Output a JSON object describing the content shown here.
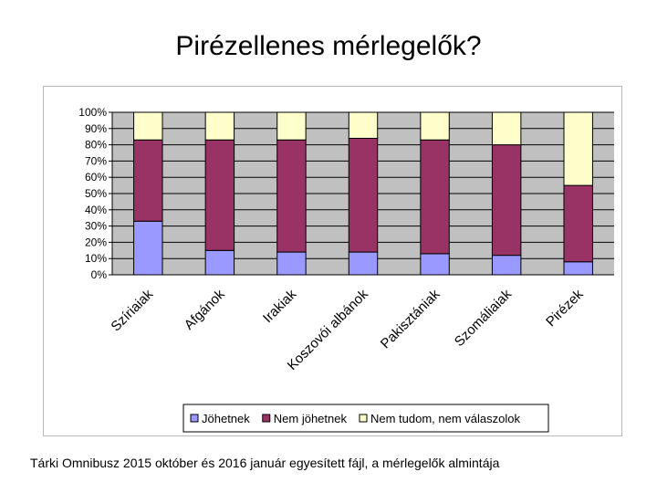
{
  "slide": {
    "title": "Pirézellenes mérlegelők?",
    "footnote": "Tárki Omnibusz 2015 október és 2016 január egyesített fájl, a mérlegelők almintája"
  },
  "chart_data": {
    "type": "bar",
    "stacked": true,
    "percent": true,
    "categories": [
      "Szíriaiak",
      "Afgánok",
      "Irakiak",
      "Koszovói albánok",
      "Pakisztániak",
      "Szomáliaiak",
      "Pirézek"
    ],
    "series": [
      {
        "name": "Jöhetnek",
        "color": "#9999ff",
        "values": [
          33,
          15,
          14,
          14,
          13,
          12,
          8
        ]
      },
      {
        "name": "Nem jöhetnek",
        "color": "#993366",
        "values": [
          50,
          68,
          69,
          70,
          70,
          68,
          47
        ]
      },
      {
        "name": "Nem tudom, nem válaszolok",
        "color": "#ffffcc",
        "values": [
          17,
          17,
          17,
          16,
          17,
          20,
          45
        ]
      }
    ],
    "ylim": [
      0,
      100
    ],
    "yticks": [
      "0%",
      "10%",
      "20%",
      "30%",
      "40%",
      "50%",
      "60%",
      "70%",
      "80%",
      "90%",
      "100%"
    ],
    "plot_background": "#c0c0c0",
    "grid": true,
    "legend_position": "bottom"
  }
}
